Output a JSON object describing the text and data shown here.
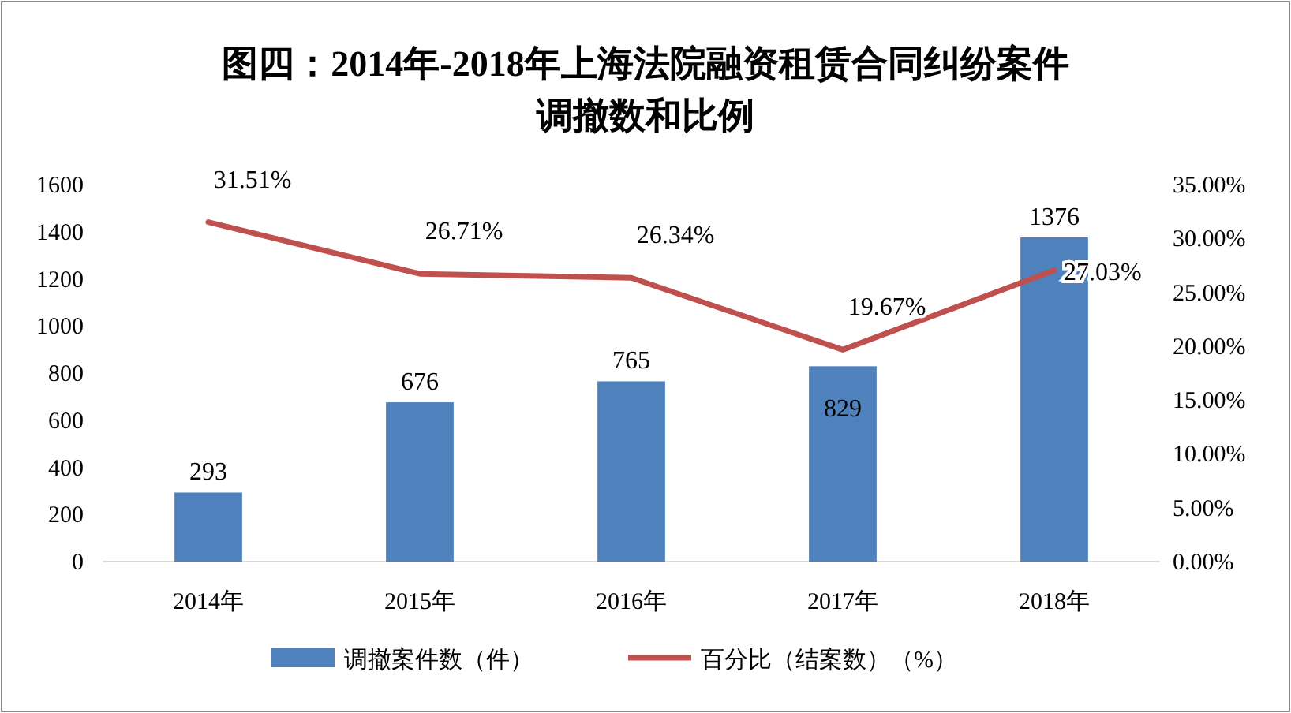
{
  "chart_data": {
    "type": "bar",
    "title": "图四：2014年-2018年上海法院融资租赁合同纠纷案件",
    "subtitle": "调撤数和比例",
    "categories": [
      "2014年",
      "2015年",
      "2016年",
      "2017年",
      "2018年"
    ],
    "series": [
      {
        "name": "调撤案件数（件）",
        "color": "#4f81bd",
        "values": [
          293,
          676,
          765,
          829,
          1376
        ],
        "value_labels": [
          "293",
          "676",
          "765",
          "829",
          "1376"
        ]
      },
      {
        "name": "百分比（结案数）（%）",
        "type": "line",
        "axis": "y2",
        "color": "#c0504d",
        "marker": "none",
        "line_style": "solid",
        "values": [
          31.51,
          26.71,
          26.34,
          19.67,
          27.03
        ],
        "value_labels": [
          "31.51%",
          "26.71%",
          "26.34%",
          "19.67%",
          "27.03%"
        ]
      }
    ],
    "ylim": [
      0,
      1600
    ],
    "yticks": [
      0,
      200,
      400,
      600,
      800,
      1000,
      1200,
      1400,
      1600
    ],
    "y2lim": [
      0,
      35
    ],
    "y2ticks": [
      {
        "value": 0,
        "label": "0.00%"
      },
      {
        "value": 5,
        "label": "5.00%"
      },
      {
        "value": 10,
        "label": "10.00%"
      },
      {
        "value": 15,
        "label": "15.00%"
      },
      {
        "value": 20,
        "label": "20.00%"
      },
      {
        "value": 25,
        "label": "25.00%"
      },
      {
        "value": 30,
        "label": "30.00%"
      },
      {
        "value": 35,
        "label": "35.00%"
      }
    ],
    "grid": false,
    "legend": "bottom"
  }
}
